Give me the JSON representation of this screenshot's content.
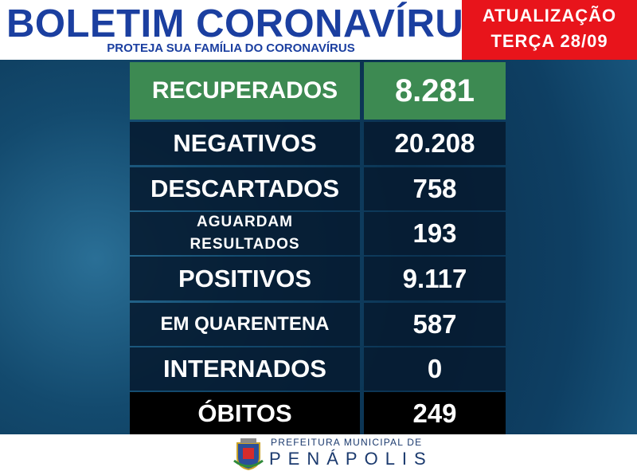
{
  "header": {
    "title": "BOLETIM CORONAVÍRUS",
    "subtitle": "PROTEJA SUA FAMÍLIA DO CORONAVÍRUS"
  },
  "update": {
    "line1": "ATUALIZAÇÃO",
    "line2": "TERÇA 28/09"
  },
  "table": {
    "rows": [
      [
        "RECUPERADOS",
        "8.281"
      ],
      [
        "NEGATIVOS",
        "20.208"
      ],
      [
        "DESCARTADOS",
        "758"
      ],
      [
        "AGUARDAM RESULTADOS",
        "193"
      ],
      [
        "POSITIVOS",
        "9.117"
      ],
      [
        "EM QUARENTENA",
        "587"
      ],
      [
        "INTERNADOS",
        "0"
      ],
      [
        "ÓBITOS",
        "249"
      ]
    ]
  },
  "footer": {
    "line1": "PREFEITURA MUNICIPAL DE",
    "line2": "PENÁPOLIS"
  }
}
